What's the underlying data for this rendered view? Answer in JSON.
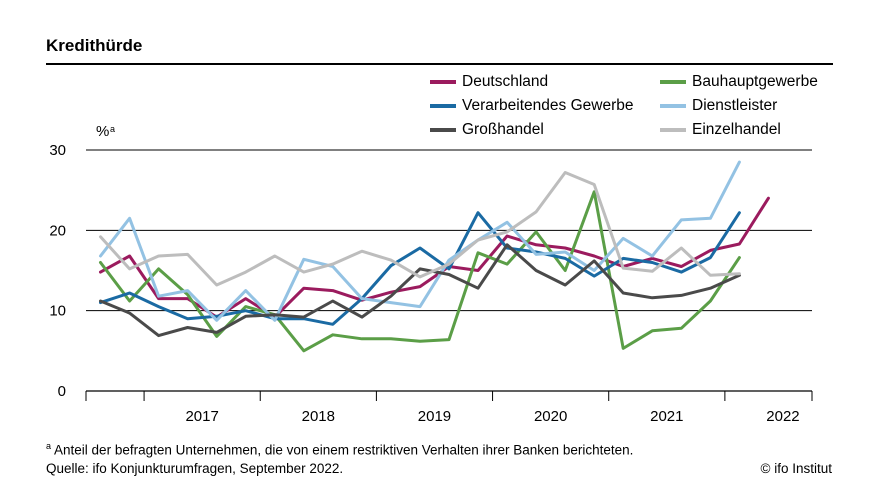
{
  "title": "Kredithürde",
  "footnote_mark": "a",
  "footnote_text": "Anteil der befragten Unternehmen, die von einem restriktiven Verhalten ihrer Banken berichteten.",
  "source": "Quelle: ifo Konjunkturumfragen, September 2022.",
  "copyright": "© ifo Institut",
  "chart_data": {
    "type": "line",
    "title": "Kredithürde",
    "ylabel": "%",
    "ylabel_footnote": "a",
    "xlabel": "",
    "ylim": [
      0,
      30
    ],
    "yticks": [
      "0",
      "10",
      "20",
      "30"
    ],
    "year_labels": [
      "2017",
      "2018",
      "2019",
      "2020",
      "2021",
      "2022"
    ],
    "grid": "horizontal",
    "x_start": 2016.5,
    "x_end": 2022.75,
    "x": [
      2016.625,
      2016.875,
      2017.125,
      2017.375,
      2017.625,
      2017.875,
      2018.125,
      2018.375,
      2018.625,
      2018.875,
      2019.125,
      2019.375,
      2019.625,
      2019.875,
      2020.125,
      2020.375,
      2020.625,
      2020.875,
      2021.125,
      2021.375,
      2021.625,
      2021.875,
      2022.125,
      2022.375,
      2022.625
    ],
    "series": [
      {
        "name": "Deutschland",
        "color": "#9b1b5e",
        "values": [
          14.8,
          16.8,
          11.5,
          11.5,
          9.2,
          11.5,
          9.2,
          12.8,
          12.5,
          11.3,
          12.3,
          13.0,
          15.5,
          15.0,
          19.3,
          18.2,
          17.8,
          16.8,
          15.5,
          16.5,
          15.5,
          17.5,
          18.3,
          24.0,
          null
        ]
      },
      {
        "name": "Bauhauptgewerbe",
        "color": "#5b9e47",
        "values": [
          16.0,
          11.2,
          15.2,
          12.0,
          6.8,
          10.5,
          9.5,
          5.0,
          7.0,
          6.5,
          6.5,
          6.2,
          6.4,
          17.2,
          15.8,
          19.8,
          15.0,
          24.8,
          5.3,
          7.5,
          7.8,
          11.2,
          16.6,
          null,
          null
        ]
      },
      {
        "name": "Verarbeitendes Gewerbe",
        "color": "#1a6aa3",
        "values": [
          11.0,
          12.2,
          10.5,
          9.0,
          9.3,
          10.0,
          9.0,
          9.0,
          8.3,
          11.5,
          15.6,
          17.8,
          15.2,
          22.2,
          17.8,
          17.3,
          16.5,
          14.3,
          16.5,
          16.0,
          14.8,
          16.6,
          22.2,
          null,
          null
        ]
      },
      {
        "name": "Dienstleister",
        "color": "#93c2e3",
        "values": [
          16.8,
          21.5,
          11.8,
          12.5,
          8.8,
          12.5,
          8.8,
          16.4,
          15.5,
          11.5,
          11.0,
          10.5,
          16.3,
          18.8,
          21.0,
          17.0,
          17.3,
          15.0,
          19.0,
          16.8,
          21.3,
          21.5,
          28.5,
          null,
          null
        ]
      },
      {
        "name": "Großhandel",
        "color": "#4a4a4a",
        "values": [
          11.2,
          9.7,
          6.9,
          7.9,
          7.3,
          9.3,
          9.5,
          9.2,
          11.2,
          9.2,
          11.8,
          15.2,
          14.5,
          12.8,
          18.2,
          15.0,
          13.2,
          16.2,
          12.2,
          11.6,
          11.9,
          12.8,
          14.4,
          null,
          null
        ]
      },
      {
        "name": "Einzelhandel",
        "color": "#bdbdbd",
        "values": [
          19.2,
          15.2,
          16.8,
          17.0,
          13.2,
          14.8,
          16.8,
          14.8,
          15.8,
          17.4,
          16.3,
          14.2,
          15.8,
          18.8,
          19.8,
          22.3,
          27.2,
          25.7,
          15.3,
          14.9,
          17.8,
          14.4,
          14.6,
          null,
          null
        ]
      }
    ]
  }
}
